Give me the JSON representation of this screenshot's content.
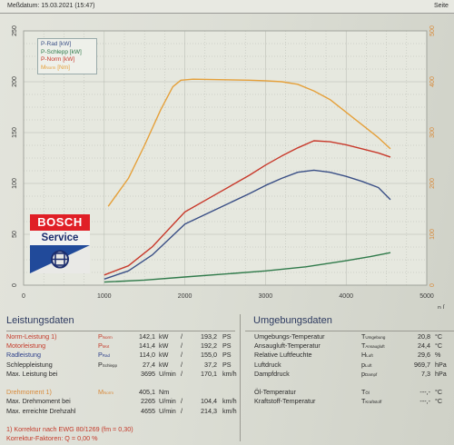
{
  "header": {
    "date_label": "Meßdatum: 15.03.2021 (15:47)",
    "page_label": "Seite"
  },
  "legend": {
    "items": [
      {
        "label": "P-Rad [kW]",
        "color": "#3a4f86"
      },
      {
        "label": "P-Schlepp [kW]",
        "color": "#2f7a4a"
      },
      {
        "label": "P-Norm [kW]",
        "color": "#c8392b"
      },
      {
        "label": "M",
        "sub": "Norm",
        "unit": "[Nm]",
        "color": "#e5a03a"
      }
    ]
  },
  "logo": {
    "brand": "BOSCH",
    "line2": "Service"
  },
  "chart_data": {
    "type": "line",
    "x_unit_label": "n [",
    "xlim": [
      0,
      5000
    ],
    "xticks": [
      0,
      1000,
      2000,
      3000,
      4000,
      5000
    ],
    "left_axis": {
      "ylim": [
        0,
        250
      ],
      "ticks": [
        0,
        50,
        100,
        150,
        200,
        250
      ]
    },
    "right_axis": {
      "ylim": [
        0,
        500
      ],
      "ticks": [
        0,
        100,
        200,
        300,
        400,
        500
      ]
    },
    "grid": true,
    "legend_position": "top-left",
    "series": [
      {
        "name": "P-Rad [kW]",
        "axis": "left",
        "color": "#3a4f86",
        "x": [
          1000,
          1300,
          1600,
          1800,
          2000,
          2400,
          2800,
          3000,
          3200,
          3400,
          3600,
          3800,
          4000,
          4200,
          4400,
          4550
        ],
        "y": [
          6,
          14,
          30,
          45,
          60,
          75,
          90,
          98,
          105,
          111,
          113,
          111,
          107,
          102,
          96,
          84
        ]
      },
      {
        "name": "P-Schlepp [kW]",
        "axis": "left",
        "color": "#2f7a4a",
        "x": [
          1000,
          1500,
          2000,
          2500,
          3000,
          3500,
          4000,
          4300,
          4550
        ],
        "y": [
          3,
          5,
          8,
          11,
          14,
          18,
          24,
          28,
          32
        ]
      },
      {
        "name": "P-Norm [kW]",
        "axis": "left",
        "color": "#c8392b",
        "x": [
          1000,
          1300,
          1600,
          1800,
          2000,
          2400,
          2800,
          3000,
          3200,
          3400,
          3600,
          3800,
          4000,
          4200,
          4400,
          4550
        ],
        "y": [
          10,
          19,
          38,
          55,
          72,
          90,
          108,
          118,
          127,
          135,
          142,
          141,
          138,
          134,
          130,
          126
        ]
      },
      {
        "name": "M Norm [Nm]",
        "axis": "right",
        "color": "#e5a03a",
        "x": [
          1050,
          1300,
          1500,
          1700,
          1850,
          1950,
          2100,
          2500,
          2800,
          3000,
          3200,
          3400,
          3600,
          3800,
          4000,
          4200,
          4400,
          4550
        ],
        "y": [
          155,
          210,
          275,
          345,
          390,
          403,
          405,
          404,
          403,
          402,
          400,
          395,
          382,
          365,
          340,
          315,
          290,
          268
        ]
      }
    ]
  },
  "leistungsdaten": {
    "title": "Leistungsdaten",
    "rows": [
      {
        "label": "Norm-Leistung",
        "sup": "1)",
        "sym": "P",
        "symsub": "Norm",
        "v1": "142,1",
        "u1": "kW",
        "sep": "/",
        "v2": "193,2",
        "u2": "PS",
        "color": "red"
      },
      {
        "label": "Motorleistung",
        "sup": "",
        "sym": "P",
        "symsub": "Mot",
        "v1": "141,4",
        "u1": "kW",
        "sep": "/",
        "v2": "192,2",
        "u2": "PS",
        "color": "red"
      },
      {
        "label": "Radleistung",
        "sup": "",
        "sym": "P",
        "symsub": "Rad",
        "v1": "114,0",
        "u1": "kW",
        "sep": "/",
        "v2": "155,0",
        "u2": "PS",
        "color": "blu"
      },
      {
        "label": "Schleppleistung",
        "sup": "",
        "sym": "P",
        "symsub": "Schlepp",
        "v1": "27,4",
        "u1": "kW",
        "sep": "/",
        "v2": "37,2",
        "u2": "PS",
        "color": ""
      },
      {
        "label": "Max. Leistung bei",
        "sup": "",
        "sym": "",
        "symsub": "",
        "v1": "3695",
        "u1": "U/min",
        "sep": "/",
        "v2": "170,1",
        "u2": "km/h",
        "color": ""
      },
      {
        "label": "",
        "sup": "",
        "sym": "",
        "symsub": "",
        "v1": "",
        "u1": "",
        "sep": "",
        "v2": "",
        "u2": "",
        "color": ""
      },
      {
        "label": "Drehmoment",
        "sup": "1)",
        "sym": "M",
        "symsub": "Norm",
        "v1": "405,1",
        "u1": "Nm",
        "sep": "",
        "v2": "",
        "u2": "",
        "color": "org"
      },
      {
        "label": "Max. Drehmoment bei",
        "sup": "",
        "sym": "",
        "symsub": "",
        "v1": "2265",
        "u1": "U/min",
        "sep": "/",
        "v2": "104,4",
        "u2": "km/h",
        "color": ""
      },
      {
        "label": "Max. erreichte Drehzahl",
        "sup": "",
        "sym": "",
        "symsub": "",
        "v1": "4655",
        "u1": "U/min",
        "sep": "/",
        "v2": "214,3",
        "u2": "km/h",
        "color": ""
      },
      {
        "label": "",
        "sup": "",
        "sym": "",
        "symsub": "",
        "v1": "",
        "u1": "",
        "sep": "",
        "v2": "",
        "u2": "",
        "color": ""
      },
      {
        "label": "1) Korrektur nach EWG 80/1269 (f",
        "sup": "",
        "sym": "",
        "symsub": "",
        "v1": "",
        "u1": "",
        "sep": "",
        "v2": "",
        "u2": "",
        "color": "red",
        "tail": "m = 0,30)"
      },
      {
        "label": "Korrektur-Faktoren: Q = 0,00 %",
        "sup": "",
        "sym": "",
        "symsub": "",
        "v1": "",
        "u1": "",
        "sep": "",
        "v2": "",
        "u2": "",
        "color": "red"
      }
    ]
  },
  "umgebungsdaten": {
    "title": "Umgebungsdaten",
    "rows": [
      {
        "label": "Umgebungs-Temperatur",
        "sym": "T",
        "symsub": "Umgebung",
        "value": "20,8",
        "unit": "°C"
      },
      {
        "label": "Ansaugluft-Temperatur",
        "sym": "T",
        "symsub": "Ansaugluft",
        "value": "24,4",
        "unit": "°C"
      },
      {
        "label": "Relative Luftfeuchte",
        "sym": "H",
        "symsub": "Luft",
        "value": "29,6",
        "unit": "%"
      },
      {
        "label": "Luftdruck",
        "sym": "p",
        "symsub": "Luft",
        "value": "969,7",
        "unit": "hPa"
      },
      {
        "label": "Dampfdruck",
        "sym": "p",
        "symsub": "Dampf",
        "value": "7,3",
        "unit": "hPa"
      },
      {
        "label": "",
        "sym": "",
        "symsub": "",
        "value": "",
        "unit": ""
      },
      {
        "label": "Öl-Temperatur",
        "sym": "T",
        "symsub": "Öl",
        "value": "---,-",
        "unit": "°C"
      },
      {
        "label": "Kraftstoff-Temperatur",
        "sym": "T",
        "symsub": "Kraftstoff",
        "value": "---,-",
        "unit": "°C"
      }
    ]
  }
}
